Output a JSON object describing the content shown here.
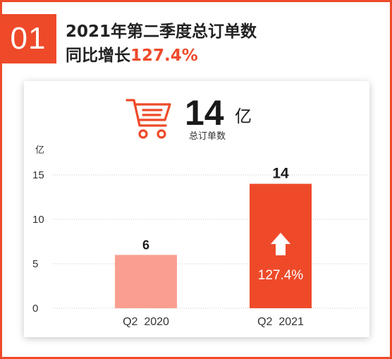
{
  "badge_number": "01",
  "headline": {
    "line1": "2021年第二季度总订单数",
    "line2_prefix": "同比增长",
    "line2_value": "127.4%"
  },
  "summary": {
    "value": "14",
    "unit": "亿",
    "caption": "总订单数"
  },
  "colors": {
    "accent": "#ee4a2a",
    "bar_2020": "#fa9f90",
    "bar_2021": "#ee4a2a"
  },
  "icons": [
    "shopping-cart-icon",
    "arrow-up-icon"
  ],
  "chart_data": {
    "type": "bar",
    "categories": [
      "Q2  2020",
      "Q2  2021"
    ],
    "values": [
      6,
      14
    ],
    "value_labels": [
      "6",
      "14"
    ],
    "ylabel": "亿",
    "ylim": [
      0,
      15
    ],
    "yticks": [
      0,
      5,
      10,
      15
    ],
    "grid": true,
    "annotation": "127.4%"
  }
}
